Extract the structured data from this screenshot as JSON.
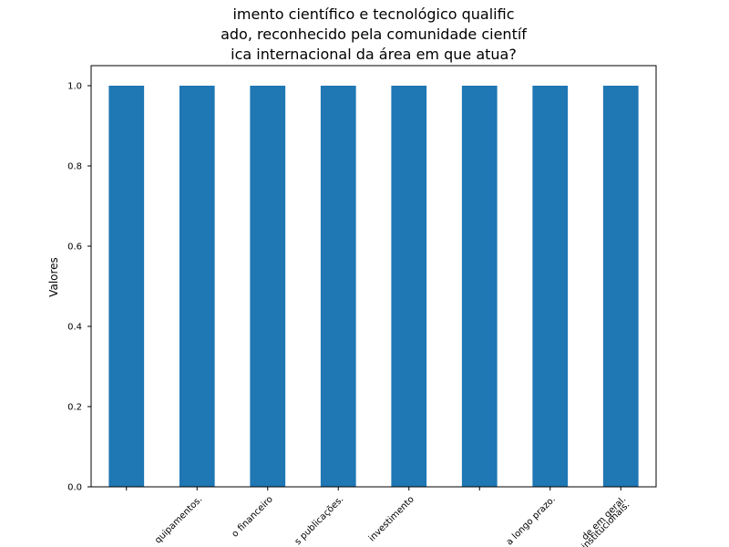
{
  "chart_data": {
    "type": "bar",
    "title_lines": [
      "imento científico e tecnológico qualific",
      "ado, reconhecido pela comunidade científ",
      "ica internacional da área em que atua?"
    ],
    "ylabel": "Valores",
    "xlabel": "",
    "ylim": [
      0,
      1.05
    ],
    "yticks": [
      0.0,
      0.2,
      0.4,
      0.6,
      0.8,
      1.0
    ],
    "ytick_labels": [
      "0.0",
      "0.2",
      "0.4",
      "0.6",
      "0.8",
      "1.0"
    ],
    "categories": [
      "",
      "quipamentos.",
      "o  financeiro",
      "s publicações.",
      "investimento",
      "",
      "a longo prazo.",
      "de em geral.\ninstitucionais."
    ],
    "values": [
      1,
      1,
      1,
      1,
      1,
      1,
      1,
      1
    ],
    "bar_color": "#1f77b4",
    "grid": false
  }
}
